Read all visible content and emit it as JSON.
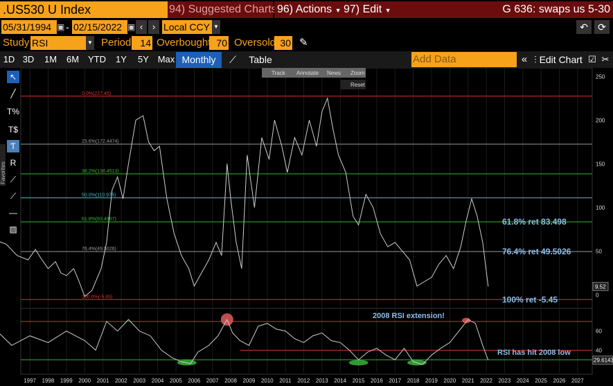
{
  "header": {
    "ticker": ".US530 U Index",
    "suggested": "94) Suggested Charts",
    "actions": "96) Actions",
    "edit": "97) Edit",
    "title": "G 636: swaps us 5-30"
  },
  "daterow": {
    "start": "05/31/1994",
    "dash": "-",
    "end": "02/15/2022",
    "currency": "Local CCY"
  },
  "study": {
    "label": "Study",
    "value": "RSI",
    "period_label": "Period",
    "period": "14",
    "overbought_label": "Overbought",
    "overbought": "70",
    "oversold_label": "Oversold",
    "oversold": "30"
  },
  "periods": [
    "1D",
    "3D",
    "1M",
    "6M",
    "YTD",
    "1Y",
    "5Y",
    "Max"
  ],
  "interval": "Monthly ▼",
  "table_label": "Table",
  "add_data_placeholder": "Add Data",
  "edit_chart": "Edit Chart",
  "mini_toolbar": [
    "Track",
    "Annotate",
    "News",
    "Zoom"
  ],
  "reset_label": "Reset",
  "favorites_label": "Favorites",
  "chart_data": {
    "type": "line",
    "title": "",
    "xlabel": "",
    "ylabel": "",
    "x_ticks": [
      "1997",
      "1998",
      "1999",
      "2000",
      "2001",
      "2002",
      "2003",
      "2004",
      "2005",
      "2006",
      "2007",
      "2008",
      "2009",
      "2010",
      "2011",
      "2012",
      "2013",
      "2014",
      "2015",
      "2016",
      "2017",
      "2018",
      "2019",
      "2020",
      "2021",
      "2022",
      "2023",
      "2024",
      "2025",
      "2026",
      "2027"
    ],
    "y_ticks": [
      0,
      50,
      100,
      150,
      200,
      250
    ],
    "ylim": [
      -10,
      255
    ],
    "series": [
      {
        "name": "",
        "x": [
          1995.2,
          1995.7,
          1996.3,
          1996.9,
          1997.3,
          1997.6,
          1998.0,
          1998.4,
          1998.7,
          1999.0,
          1999.4,
          1999.7,
          2000.0,
          2000.4,
          2000.9,
          2001.2,
          2001.5,
          2001.8,
          2002.1,
          2002.4,
          2002.8,
          2003.2,
          2003.5,
          2003.8,
          2004.1,
          2004.5,
          2004.9,
          2005.3,
          2005.7,
          2006.0,
          2006.4,
          2006.8,
          2007.2,
          2007.5,
          2007.8,
          2008.0,
          2008.3,
          2008.6,
          2008.9,
          2009.3,
          2009.7,
          2010.1,
          2010.4,
          2010.8,
          2011.1,
          2011.5,
          2011.9,
          2012.3,
          2012.7,
          2013.0,
          2013.3,
          2013.6,
          2013.9,
          2014.3,
          2014.7,
          2015.0,
          2015.4,
          2015.8,
          2016.2,
          2016.6,
          2017.0,
          2017.4,
          2017.8,
          2018.2,
          2018.6,
          2019.0,
          2019.4,
          2019.8,
          2020.2,
          2020.6,
          2020.9,
          2021.2,
          2021.5,
          2021.8,
          2022.1
        ],
        "values": [
          62,
          58,
          45,
          40,
          52,
          42,
          30,
          38,
          25,
          22,
          30,
          15,
          -2,
          5,
          30,
          60,
          120,
          135,
          110,
          150,
          200,
          205,
          175,
          165,
          170,
          110,
          70,
          45,
          30,
          10,
          25,
          40,
          60,
          45,
          150,
          110,
          60,
          30,
          160,
          100,
          180,
          155,
          200,
          170,
          140,
          180,
          160,
          200,
          170,
          210,
          225,
          190,
          160,
          140,
          90,
          80,
          115,
          100,
          70,
          55,
          60,
          50,
          40,
          10,
          15,
          20,
          35,
          45,
          30,
          55,
          85,
          110,
          90,
          60,
          9.52
        ]
      }
    ],
    "fib_levels": [
      {
        "label": "0.0%(227.40)",
        "value": 227.4,
        "color": "#e03030"
      },
      {
        "label": "23.6%(172.4474)",
        "value": 172.4474,
        "color": "#9a9a9a"
      },
      {
        "label": "38.2%(138.4513)",
        "value": 138.4513,
        "color": "#2fb82f"
      },
      {
        "label": "50.0%(110.975)",
        "value": 110.975,
        "color": "#35c3c3"
      },
      {
        "label": "61.8%(83.4987)",
        "value": 83.4987,
        "color": "#2fb82f"
      },
      {
        "label": "76.4%(49.5026)",
        "value": 49.5026,
        "color": "#9a9a9a"
      },
      {
        "label": "100.0%(-5.45)",
        "value": -5.45,
        "color": "#e03030"
      }
    ],
    "last_value_label": "9.52",
    "annotations": [
      {
        "text": "61.8% ret 83.498",
        "value": 83.498
      },
      {
        "text": "76.4% ret 49.5026",
        "value": 49.5026
      },
      {
        "text": "100% ret -5.45",
        "value": -5.45
      }
    ],
    "rsi": {
      "y_ticks": [
        40,
        60
      ],
      "ylim": [
        20,
        80
      ],
      "overbought": 70,
      "oversold": 30,
      "support_line": 40,
      "last_value_label": "29.6143",
      "x": [
        1995.2,
        1996.0,
        1997.0,
        1998.0,
        1999.0,
        2000.0,
        2000.6,
        2001.2,
        2001.8,
        2002.4,
        2003.0,
        2003.6,
        2004.2,
        2004.8,
        2005.3,
        2005.8,
        2006.2,
        2006.8,
        2007.3,
        2007.8,
        2008.1,
        2008.5,
        2009.0,
        2009.5,
        2010.0,
        2010.5,
        2011.0,
        2011.5,
        2012.0,
        2012.5,
        2013.0,
        2013.5,
        2014.0,
        2014.5,
        2015.0,
        2015.5,
        2016.0,
        2016.5,
        2017.0,
        2017.5,
        2018.0,
        2018.5,
        2019.0,
        2019.5,
        2020.0,
        2020.5,
        2021.0,
        2021.4,
        2021.8,
        2022.1
      ],
      "values": [
        60,
        45,
        55,
        48,
        60,
        50,
        40,
        70,
        60,
        72,
        60,
        55,
        40,
        32,
        28,
        26,
        38,
        45,
        55,
        72,
        58,
        50,
        45,
        65,
        68,
        62,
        60,
        52,
        48,
        55,
        58,
        50,
        48,
        40,
        30,
        38,
        42,
        35,
        30,
        42,
        28,
        25,
        35,
        42,
        48,
        60,
        72,
        68,
        45,
        29.6
      ],
      "annotations": [
        {
          "text": "2008 RSI extension!"
        },
        {
          "text": "RSI  has hit 2008 low"
        }
      ]
    }
  }
}
